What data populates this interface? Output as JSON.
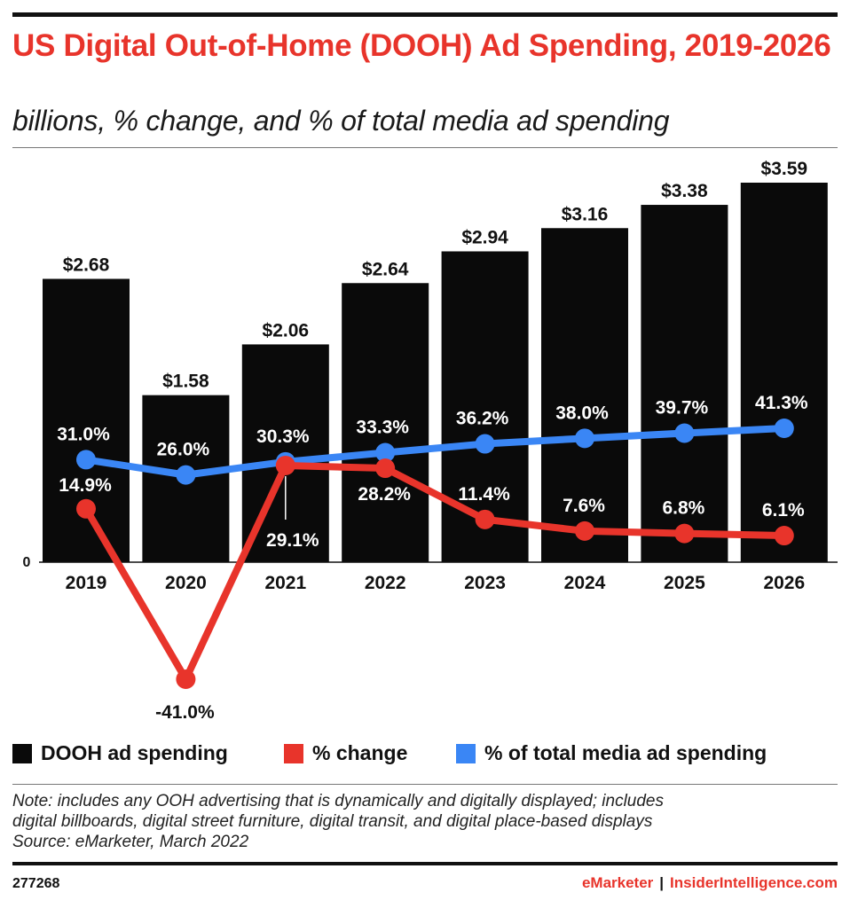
{
  "header": {
    "title": "US Digital Out-of-Home (DOOH) Ad Spending, 2019-2026",
    "subtitle": "billions, % change, and % of total media ad spending"
  },
  "legend": {
    "items": [
      {
        "label": "DOOH ad spending",
        "color": "#0a0a0a"
      },
      {
        "label": "% change",
        "color": "#e8342b"
      },
      {
        "label": "% of total media ad spending",
        "color": "#3a86f5"
      }
    ]
  },
  "footer": {
    "note_lines": [
      "Note: includes any OOH advertising that is dynamically and digitally displayed; includes",
      "digital billboards, digital street furniture, digital transit, and digital place-based displays",
      "Source: eMarketer, March 2022"
    ],
    "chart_id": "277268",
    "brand_left": "eMarketer",
    "brand_sep": "|",
    "brand_right": "InsiderIntelligence.com"
  },
  "chart_data": {
    "type": "bar",
    "categories": [
      "2019",
      "2020",
      "2021",
      "2022",
      "2023",
      "2024",
      "2025",
      "2026"
    ],
    "y_zero_label": "0",
    "series": [
      {
        "name": "DOOH ad spending",
        "kind": "bar",
        "color": "#0a0a0a",
        "values": [
          2.68,
          1.58,
          2.06,
          2.64,
          2.94,
          3.16,
          3.38,
          3.59
        ],
        "labels": [
          "$2.68",
          "$1.58",
          "$2.06",
          "$2.64",
          "$2.94",
          "$3.16",
          "$3.38",
          "$3.59"
        ]
      },
      {
        "name": "% change",
        "kind": "line",
        "color": "#e8342b",
        "values": [
          14.9,
          -41.0,
          29.1,
          28.2,
          11.4,
          7.6,
          6.8,
          6.1
        ],
        "labels": [
          "14.9%",
          "-41.0%",
          "29.1%",
          "28.2%",
          "11.4%",
          "7.6%",
          "6.8%",
          "6.1%"
        ]
      },
      {
        "name": "% of total media ad spending",
        "kind": "line",
        "color": "#3a86f5",
        "values": [
          31.0,
          26.0,
          30.3,
          33.3,
          36.2,
          38.0,
          39.7,
          41.3
        ],
        "labels": [
          "31.0%",
          "26.0%",
          "30.3%",
          "33.3%",
          "36.2%",
          "38.0%",
          "39.7%",
          "41.3%"
        ]
      }
    ],
    "bar_ylim": [
      0,
      3.59
    ],
    "pct_ylim": [
      -41.0,
      41.3
    ],
    "grid": false,
    "legend_position": "bottom"
  }
}
